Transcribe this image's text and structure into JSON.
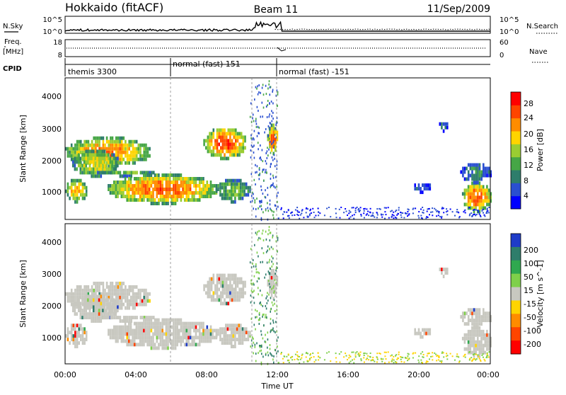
{
  "header": {
    "station": "Hokkaido (fitACF)",
    "beam": "Beam 11",
    "date": "11/Sep/2009"
  },
  "noise_panel": {
    "left_label": "N.Sky",
    "left_ticks": [
      "10^5",
      "10^0"
    ],
    "right_label": "N.Search",
    "right_ticks": [
      "10^5",
      "10^0"
    ]
  },
  "freq_panel": {
    "left_label_line1": "Freq.",
    "left_label_line2": "[MHz]",
    "left_ticks": [
      "18",
      "8"
    ],
    "right_label": "Nave",
    "right_ticks": [
      "60",
      "0"
    ]
  },
  "cpid_panel": {
    "label": "CPID",
    "segments": [
      {
        "name": "themis 3300",
        "start_hr": 0.0,
        "end_hr": 6.0
      },
      {
        "name": "normal (fast) 151",
        "start_hr": 6.0,
        "end_hr": 12.0
      },
      {
        "name": "normal (fast) -151",
        "start_hr": 12.0,
        "end_hr": 24.0
      }
    ]
  },
  "power_panel": {
    "ylabel": "Slant Range [km]",
    "yticks": [
      "4000",
      "3000",
      "2000",
      "1000"
    ],
    "cbar_label": "Power [dB]",
    "cbar_ticks": [
      "28",
      "24",
      "20",
      "16",
      "12",
      "8",
      "4"
    ],
    "colors": [
      "#0000ff",
      "#2a4fd0",
      "#2e7d6b",
      "#46a646",
      "#9acd32",
      "#ffd400",
      "#ff8c00",
      "#ff4500",
      "#ff0000"
    ]
  },
  "velocity_panel": {
    "ylabel": "Slant Range [km]",
    "yticks": [
      "4000",
      "3000",
      "2000",
      "1000"
    ],
    "cbar_label": "Velocity [m s^-1]",
    "cbar_ticks": [
      "200",
      "100",
      "50",
      "15",
      "-15",
      "-50",
      "-100",
      "-200"
    ],
    "colors": [
      "#1e3cc8",
      "#2e7d6b",
      "#2fa84f",
      "#7fd04a",
      "#c8c8c0",
      "#ffd400",
      "#ff8c00",
      "#ff4500",
      "#ff0000"
    ]
  },
  "x_axis": {
    "ticks": [
      "00:00",
      "04:00",
      "08:00",
      "12:00",
      "16:00",
      "20:00",
      "00:00"
    ],
    "label": "Time UT"
  },
  "chart_data": {
    "type": "heatmap",
    "title": "Hokkaido (fitACF) Beam 11 11/Sep/2009",
    "xlabel": "Time UT",
    "ylabel": "Slant Range [km]",
    "xlim_hours": [
      0,
      24
    ],
    "ylim_km": [
      200,
      4600
    ],
    "power_scale_db": [
      0,
      30
    ],
    "velocity_scale_ms": [
      -250,
      250
    ],
    "echo_regions": [
      {
        "t0": 0.0,
        "t1": 4.8,
        "r0": 1900,
        "r1": 2800,
        "power_db": 22,
        "velocity_ms": 0
      },
      {
        "t0": 0.0,
        "t1": 1.2,
        "r0": 800,
        "r1": 1500,
        "power_db": 20,
        "velocity_ms": 0
      },
      {
        "t0": 0.4,
        "t1": 3.0,
        "r0": 1600,
        "r1": 2400,
        "power_db": 18,
        "velocity_ms": 0
      },
      {
        "t0": 1.8,
        "t1": 5.0,
        "r0": 1600,
        "r1": 1800,
        "power_db": 14,
        "velocity_ms": 0
      },
      {
        "t0": 2.4,
        "t1": 8.6,
        "r0": 750,
        "r1": 1650,
        "power_db": 24,
        "velocity_ms": 0
      },
      {
        "t0": 8.5,
        "t1": 10.4,
        "r0": 800,
        "r1": 1500,
        "power_db": 14,
        "velocity_ms": 0
      },
      {
        "t0": 7.8,
        "t1": 10.2,
        "r0": 2150,
        "r1": 3100,
        "power_db": 26,
        "velocity_ms": 0
      },
      {
        "t0": 11.4,
        "t1": 12.0,
        "r0": 2300,
        "r1": 3200,
        "power_db": 25,
        "velocity_ms": 0
      },
      {
        "t0": 22.4,
        "t1": 24.0,
        "r0": 500,
        "r1": 1400,
        "power_db": 25,
        "velocity_ms": 0
      },
      {
        "t0": 22.3,
        "t1": 24.0,
        "r0": 1400,
        "r1": 2000,
        "power_db": 9,
        "velocity_ms": 0
      },
      {
        "t0": 21.0,
        "t1": 21.6,
        "r0": 3000,
        "r1": 3300,
        "power_db": 8,
        "velocity_ms": 0
      },
      {
        "t0": 19.6,
        "t1": 20.6,
        "r0": 1100,
        "r1": 1400,
        "power_db": 7,
        "velocity_ms": 0
      }
    ]
  }
}
